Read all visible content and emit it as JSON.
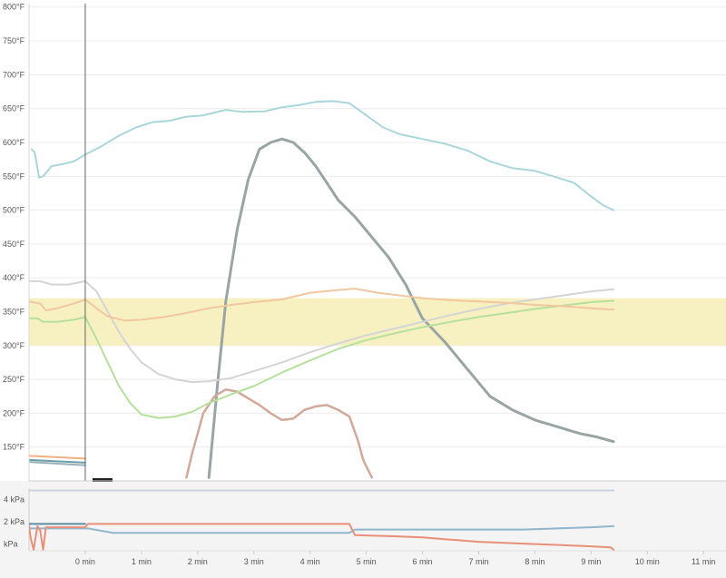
{
  "chart_data": [
    {
      "type": "line",
      "name_hint": "temperature",
      "y_ticks": [
        "150°F",
        "200°F",
        "250°F",
        "300°F",
        "350°F",
        "400°F",
        "450°F",
        "500°F",
        "550°F",
        "600°F",
        "650°F",
        "700°F",
        "750°F",
        "800°F"
      ],
      "y_tick_values": [
        150,
        200,
        250,
        300,
        350,
        400,
        450,
        500,
        550,
        600,
        650,
        700,
        750,
        800
      ],
      "ylim": [
        100,
        805
      ],
      "xlim": [
        -1,
        11.4
      ],
      "grid": true,
      "target_band": {
        "from": 300,
        "to": 370,
        "color": "#f7f1c2"
      },
      "marker_x": 0,
      "series": [
        {
          "color": "#a9d6da",
          "width": 2,
          "x": [
            -0.95,
            -0.9,
            -0.82,
            -0.75,
            -0.6,
            -0.4,
            -0.2,
            0,
            0.3,
            0.6,
            0.9,
            1.2,
            1.5,
            1.8,
            2.1,
            2.5,
            2.8,
            3.2,
            3.5,
            3.8,
            4.1,
            4.4,
            4.7,
            5.0,
            5.3,
            5.6,
            6.0,
            6.4,
            6.8,
            7.2,
            7.6,
            8.0,
            8.4,
            8.7,
            9.0,
            9.2,
            9.4
          ],
          "y": [
            590,
            585,
            548,
            550,
            565,
            568,
            572,
            582,
            595,
            610,
            622,
            630,
            632,
            638,
            640,
            648,
            645,
            646,
            652,
            655,
            660,
            661,
            658,
            640,
            622,
            612,
            605,
            598,
            588,
            572,
            562,
            558,
            548,
            540,
            520,
            508,
            500
          ]
        },
        {
          "color": "#99a5a5",
          "width": 3,
          "x": [
            2.2,
            2.35,
            2.5,
            2.7,
            2.9,
            3.1,
            3.3,
            3.5,
            3.7,
            3.9,
            4.1,
            4.3,
            4.5,
            4.8,
            5.1,
            5.4,
            5.7,
            6.0,
            6.4,
            6.8,
            7.2,
            7.6,
            8.0,
            8.4,
            8.8,
            9.1,
            9.4
          ],
          "y": [
            105,
            240,
            365,
            470,
            545,
            590,
            600,
            605,
            600,
            585,
            565,
            540,
            515,
            490,
            460,
            430,
            390,
            340,
            305,
            265,
            225,
            205,
            190,
            180,
            170,
            165,
            158
          ]
        },
        {
          "color": "#d2a899",
          "width": 2.5,
          "x": [
            1.8,
            1.9,
            2.0,
            2.1,
            2.3,
            2.5,
            2.7,
            2.9,
            3.1,
            3.3,
            3.5,
            3.7,
            3.9,
            4.1,
            4.3,
            4.5,
            4.7,
            4.85,
            4.95,
            5.1
          ],
          "y": [
            105,
            140,
            170,
            200,
            225,
            235,
            232,
            222,
            212,
            200,
            190,
            192,
            205,
            210,
            212,
            205,
            195,
            160,
            130,
            105
          ]
        },
        {
          "color": "#d4d4d4",
          "width": 2,
          "x": [
            -1,
            -0.8,
            -0.6,
            -0.3,
            0,
            0.2,
            0.4,
            0.6,
            0.8,
            1.0,
            1.3,
            1.6,
            1.9,
            2.2,
            2.6,
            3.0,
            3.5,
            4.0,
            4.5,
            5.0,
            5.5,
            6.0,
            6.5,
            7.0,
            7.5,
            8.0,
            8.5,
            9.0,
            9.4
          ],
          "y": [
            395,
            395,
            390,
            390,
            395,
            380,
            350,
            320,
            295,
            275,
            258,
            250,
            246,
            247,
            252,
            262,
            275,
            290,
            303,
            315,
            325,
            335,
            345,
            354,
            362,
            368,
            374,
            380,
            383
          ]
        },
        {
          "color": "#b5e09b",
          "width": 2,
          "x": [
            -1,
            -0.85,
            -0.75,
            -0.5,
            -0.2,
            0,
            0.2,
            0.4,
            0.6,
            0.8,
            1.0,
            1.3,
            1.6,
            1.9,
            2.2,
            2.6,
            3.0,
            3.5,
            4.0,
            4.5,
            5.0,
            5.5,
            6.0,
            6.5,
            7.0,
            7.5,
            8.0,
            8.5,
            9.0,
            9.4
          ],
          "y": [
            340,
            340,
            335,
            335,
            338,
            342,
            310,
            275,
            240,
            215,
            198,
            193,
            195,
            202,
            215,
            228,
            240,
            260,
            278,
            295,
            308,
            318,
            327,
            335,
            342,
            348,
            354,
            359,
            364,
            366
          ]
        },
        {
          "color": "#f2c7a0",
          "width": 2,
          "x": [
            -1,
            -0.8,
            -0.7,
            -0.5,
            -0.2,
            0,
            0.2,
            0.4,
            0.7,
            1.0,
            1.4,
            1.8,
            2.2,
            2.6,
            3.0,
            3.5,
            4.0,
            4.5,
            4.8,
            5.2,
            5.6,
            6.0,
            6.5,
            7.0,
            7.5,
            8.0,
            8.5,
            9.0,
            9.4
          ],
          "y": [
            365,
            362,
            352,
            355,
            362,
            368,
            355,
            343,
            337,
            338,
            342,
            348,
            355,
            360,
            364,
            368,
            378,
            382,
            384,
            378,
            374,
            370,
            367,
            365,
            363,
            360,
            358,
            355,
            353
          ]
        },
        {
          "color": "#f2b07f",
          "width": 2,
          "x": [
            -1,
            0
          ],
          "y": [
            137,
            133
          ]
        },
        {
          "color": "#6b9eab",
          "width": 2,
          "x": [
            -1,
            0
          ],
          "y": [
            131,
            127
          ]
        },
        {
          "color": "#9ab0b8",
          "width": 2,
          "x": [
            -1,
            0
          ],
          "y": [
            128,
            123
          ]
        }
      ]
    },
    {
      "type": "line",
      "name_hint": "pressure",
      "y_ticks": [
        "4 kPa",
        "2 kPa",
        "kPa"
      ],
      "y_tick_values": [
        4,
        2,
        0
      ],
      "ylim": [
        -0.6,
        5
      ],
      "xlim": [
        -1,
        11.4
      ],
      "x_ticks": [
        "0 min",
        "1 min",
        "2 min",
        "3 min",
        "4 min",
        "5 min",
        "6 min",
        "7 min",
        "8 min",
        "9 min",
        "10 min",
        "11 min"
      ],
      "x_tick_values": [
        0,
        1,
        2,
        3,
        4,
        5,
        6,
        7,
        8,
        9,
        10,
        11
      ],
      "series": [
        {
          "color": "#c7d2e3",
          "width": 2,
          "x": [
            -1,
            9.4
          ],
          "y": [
            4.8,
            4.8
          ]
        },
        {
          "color": "#5d8ea0",
          "width": 2,
          "x": [
            -1,
            0
          ],
          "y": [
            1.8,
            1.8
          ]
        },
        {
          "color": "#8fb6cc",
          "width": 2,
          "x": [
            -1,
            0,
            0.05,
            0.5,
            4.7,
            4.8,
            7.8,
            9.0,
            9.4
          ],
          "y": [
            1.4,
            1.4,
            1.4,
            1.0,
            1.0,
            1.3,
            1.3,
            1.5,
            1.6
          ]
        },
        {
          "color": "#e88f78",
          "width": 2,
          "x": [
            -1,
            -0.97,
            -0.92,
            -0.85,
            -0.8,
            -0.75,
            -0.7,
            -0.3,
            0,
            0.05,
            4.7,
            4.8,
            5.5,
            6.0,
            6.5,
            7.0,
            7.5,
            8.0,
            8.5,
            9.0,
            9.35,
            9.4
          ],
          "y": [
            1.6,
            0.5,
            -0.5,
            1.6,
            1.2,
            -0.5,
            1.5,
            1.5,
            1.5,
            1.8,
            1.8,
            0.8,
            0.7,
            0.6,
            0.4,
            0.2,
            0.1,
            0.0,
            -0.1,
            -0.2,
            -0.3,
            -0.5
          ]
        }
      ]
    }
  ]
}
